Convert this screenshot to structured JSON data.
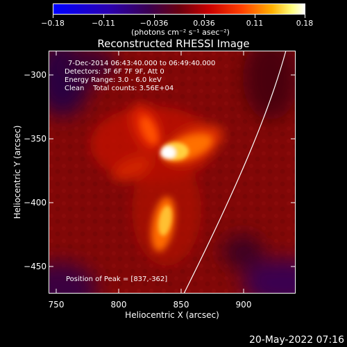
{
  "colorbar": {
    "tick_labels": [
      "−0.18",
      "−0.11",
      "−0.036",
      "0.036",
      "0.11",
      "0.18"
    ],
    "units": "(photons cm⁻² s⁻¹ asec⁻²)",
    "colormap": "blue-purple-red-orange-yellow-white"
  },
  "title": "Reconstructed RHESSI Image",
  "annotations": {
    "time_range": "7-Dec-2014 06:43:40.000 to 06:49:40.000",
    "detectors": "Detectors: 3F 6F 7F 9F, Att 0",
    "energy": "Energy Range: 3.0 - 6.0 keV",
    "clean": "Clean    Total counts: 3.56E+04",
    "peak": "Position of Peak = [837,-362]"
  },
  "axes": {
    "xlabel": "Heliocentric X (arcsec)",
    "ylabel": "Heliocentric Y (arcsec)",
    "xticks": [
      "750",
      "800",
      "850",
      "900"
    ],
    "yticks": [
      "−300",
      "−350",
      "−400",
      "−450"
    ],
    "xrange": [
      747,
      944
    ],
    "yrange": [
      -474,
      -283
    ]
  },
  "footer": {
    "date": "20-May-2022 07:16"
  },
  "colors": {
    "background": "#000000",
    "text": "#ffffff",
    "limb": "#ffffff"
  }
}
